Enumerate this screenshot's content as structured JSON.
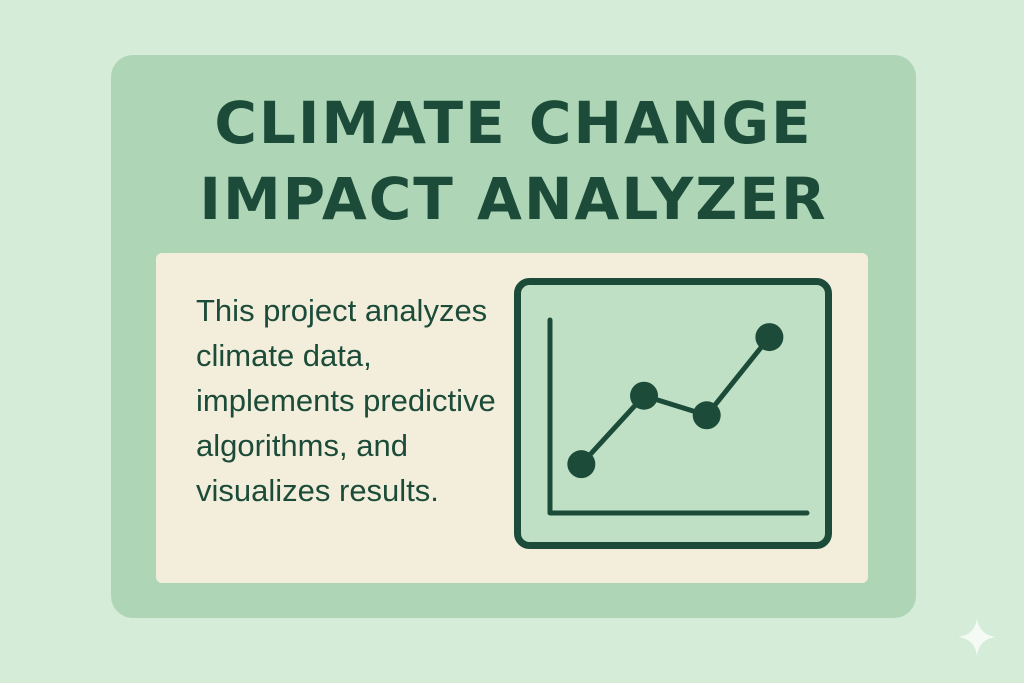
{
  "title_line1": "CLIMATE CHANGE",
  "title_line2": "IMPACT ANALYZER",
  "description": "This project analyzes climate data, implements predictive algorithms, and visualizes results.",
  "colors": {
    "background": "#d4ecd8",
    "card": "#aed6b6",
    "panel": "#f2eedb",
    "accent": "#1c4c39",
    "chart_fill": "#bfe0c5"
  },
  "icons": {
    "chart": "line-chart-icon",
    "corner": "sparkle-icon"
  },
  "chart_data": {
    "type": "line",
    "points": [
      {
        "x": 1,
        "y": 1.0
      },
      {
        "x": 2,
        "y": 2.4
      },
      {
        "x": 3,
        "y": 2.0
      },
      {
        "x": 4,
        "y": 3.6
      }
    ],
    "xlim": [
      0.5,
      4.6
    ],
    "ylim": [
      0,
      4.4
    ],
    "grid": false,
    "legend": "none"
  }
}
